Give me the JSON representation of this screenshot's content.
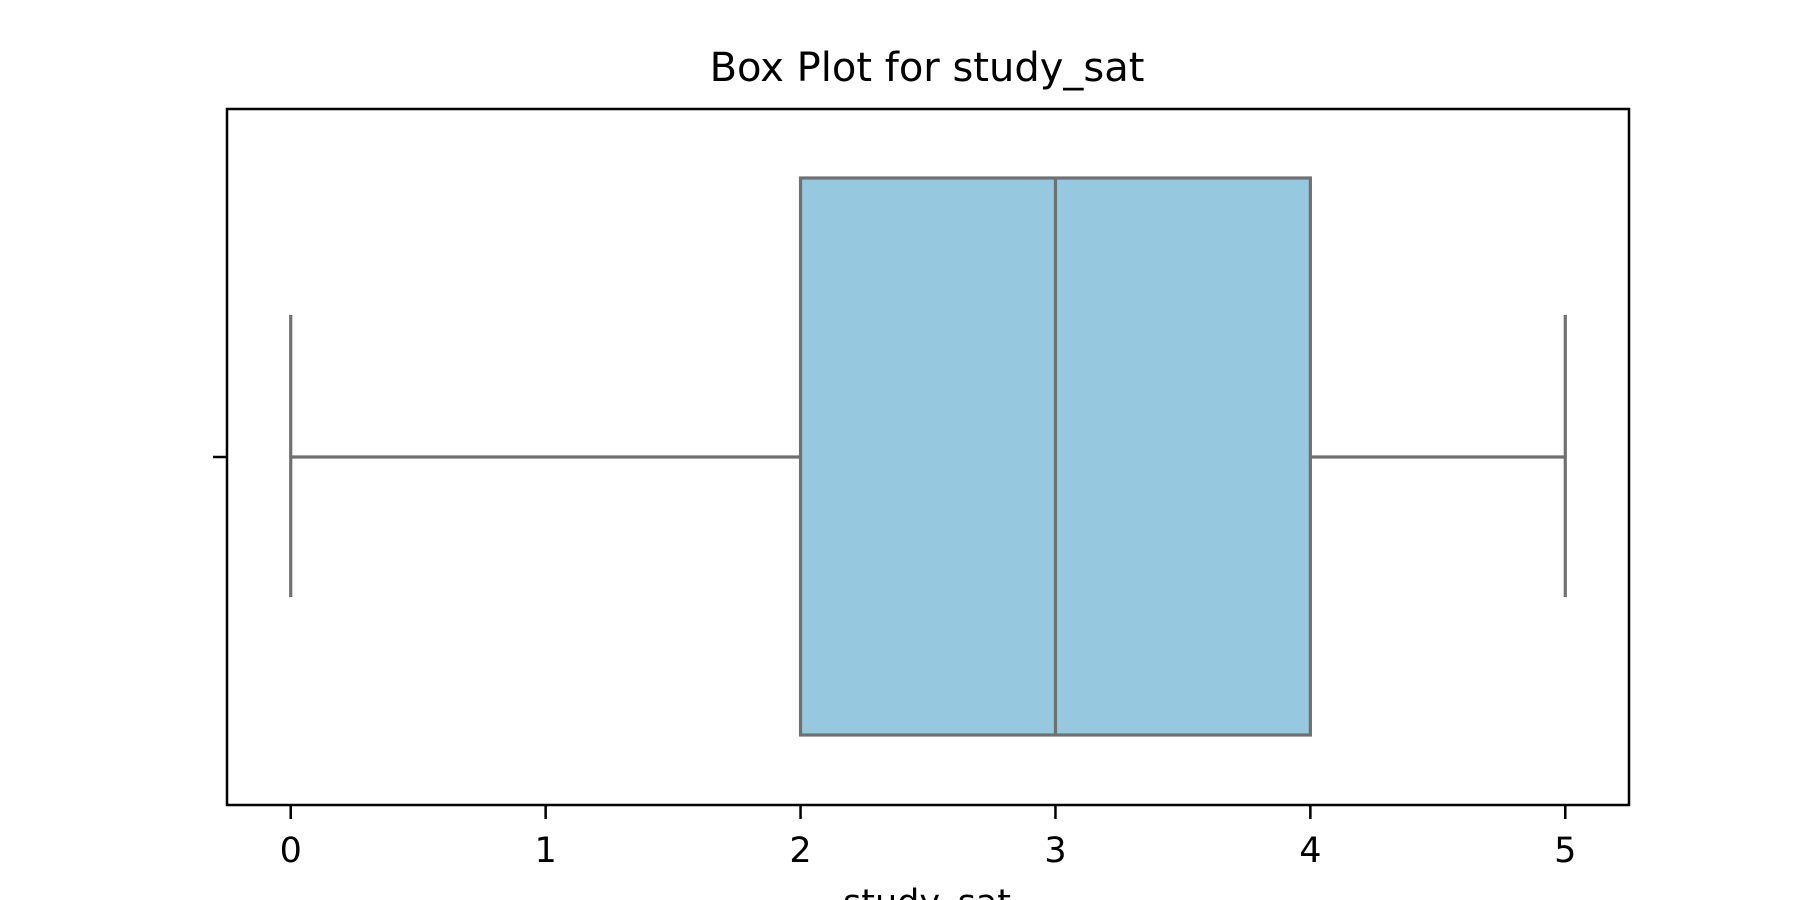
{
  "chart_data": {
    "type": "box",
    "title": "Box Plot for study_sat",
    "xlabel": "study_sat",
    "ylabel": "",
    "orientation": "horizontal",
    "xlim": [
      -0.25,
      5.25
    ],
    "xticks": [
      0,
      1,
      2,
      3,
      4,
      5
    ],
    "xtick_labels": [
      "0",
      "1",
      "2",
      "3",
      "4",
      "5"
    ],
    "grid": false,
    "box": {
      "whisker_low": 0,
      "q1": 2,
      "median": 3,
      "q3": 4,
      "whisker_high": 5,
      "outliers": []
    },
    "colors": {
      "box_fill": "#96c9df",
      "line": "#707070",
      "axes": "#000000"
    }
  }
}
